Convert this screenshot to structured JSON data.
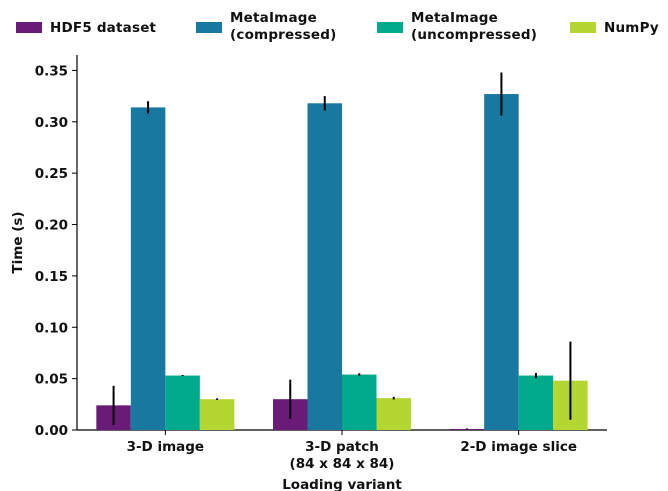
{
  "chart_data": {
    "type": "bar",
    "xlabel": "Loading variant",
    "ylabel": "Time (s)",
    "ylim": [
      0,
      0.365
    ],
    "yticks": [
      "0.00",
      "0.05",
      "0.10",
      "0.15",
      "0.20",
      "0.25",
      "0.30",
      "0.35"
    ],
    "categories": [
      "3-D image",
      "3-D patch\n(84 x 84 x 84)",
      "2-D image slice"
    ],
    "series": [
      {
        "name": "HDF5 dataset",
        "color": "#6a1b78",
        "values": [
          0.024,
          0.03,
          0.001
        ],
        "err": [
          0.019,
          0.019,
          0.0005
        ]
      },
      {
        "name": "MetaImage\n(compressed)",
        "color": "#1878a0",
        "values": [
          0.314,
          0.318,
          0.327
        ],
        "err": [
          0.006,
          0.007,
          0.021
        ]
      },
      {
        "name": "MetaImage\n(uncompressed)",
        "color": "#00ab8c",
        "values": [
          0.053,
          0.054,
          0.053
        ],
        "err": [
          0.0005,
          0.0012,
          0.0025
        ]
      },
      {
        "name": "NumPy",
        "color": "#b5d630",
        "values": [
          0.03,
          0.031,
          0.048
        ],
        "err": [
          0.0008,
          0.0012,
          0.038
        ]
      }
    ],
    "legend": "top"
  }
}
